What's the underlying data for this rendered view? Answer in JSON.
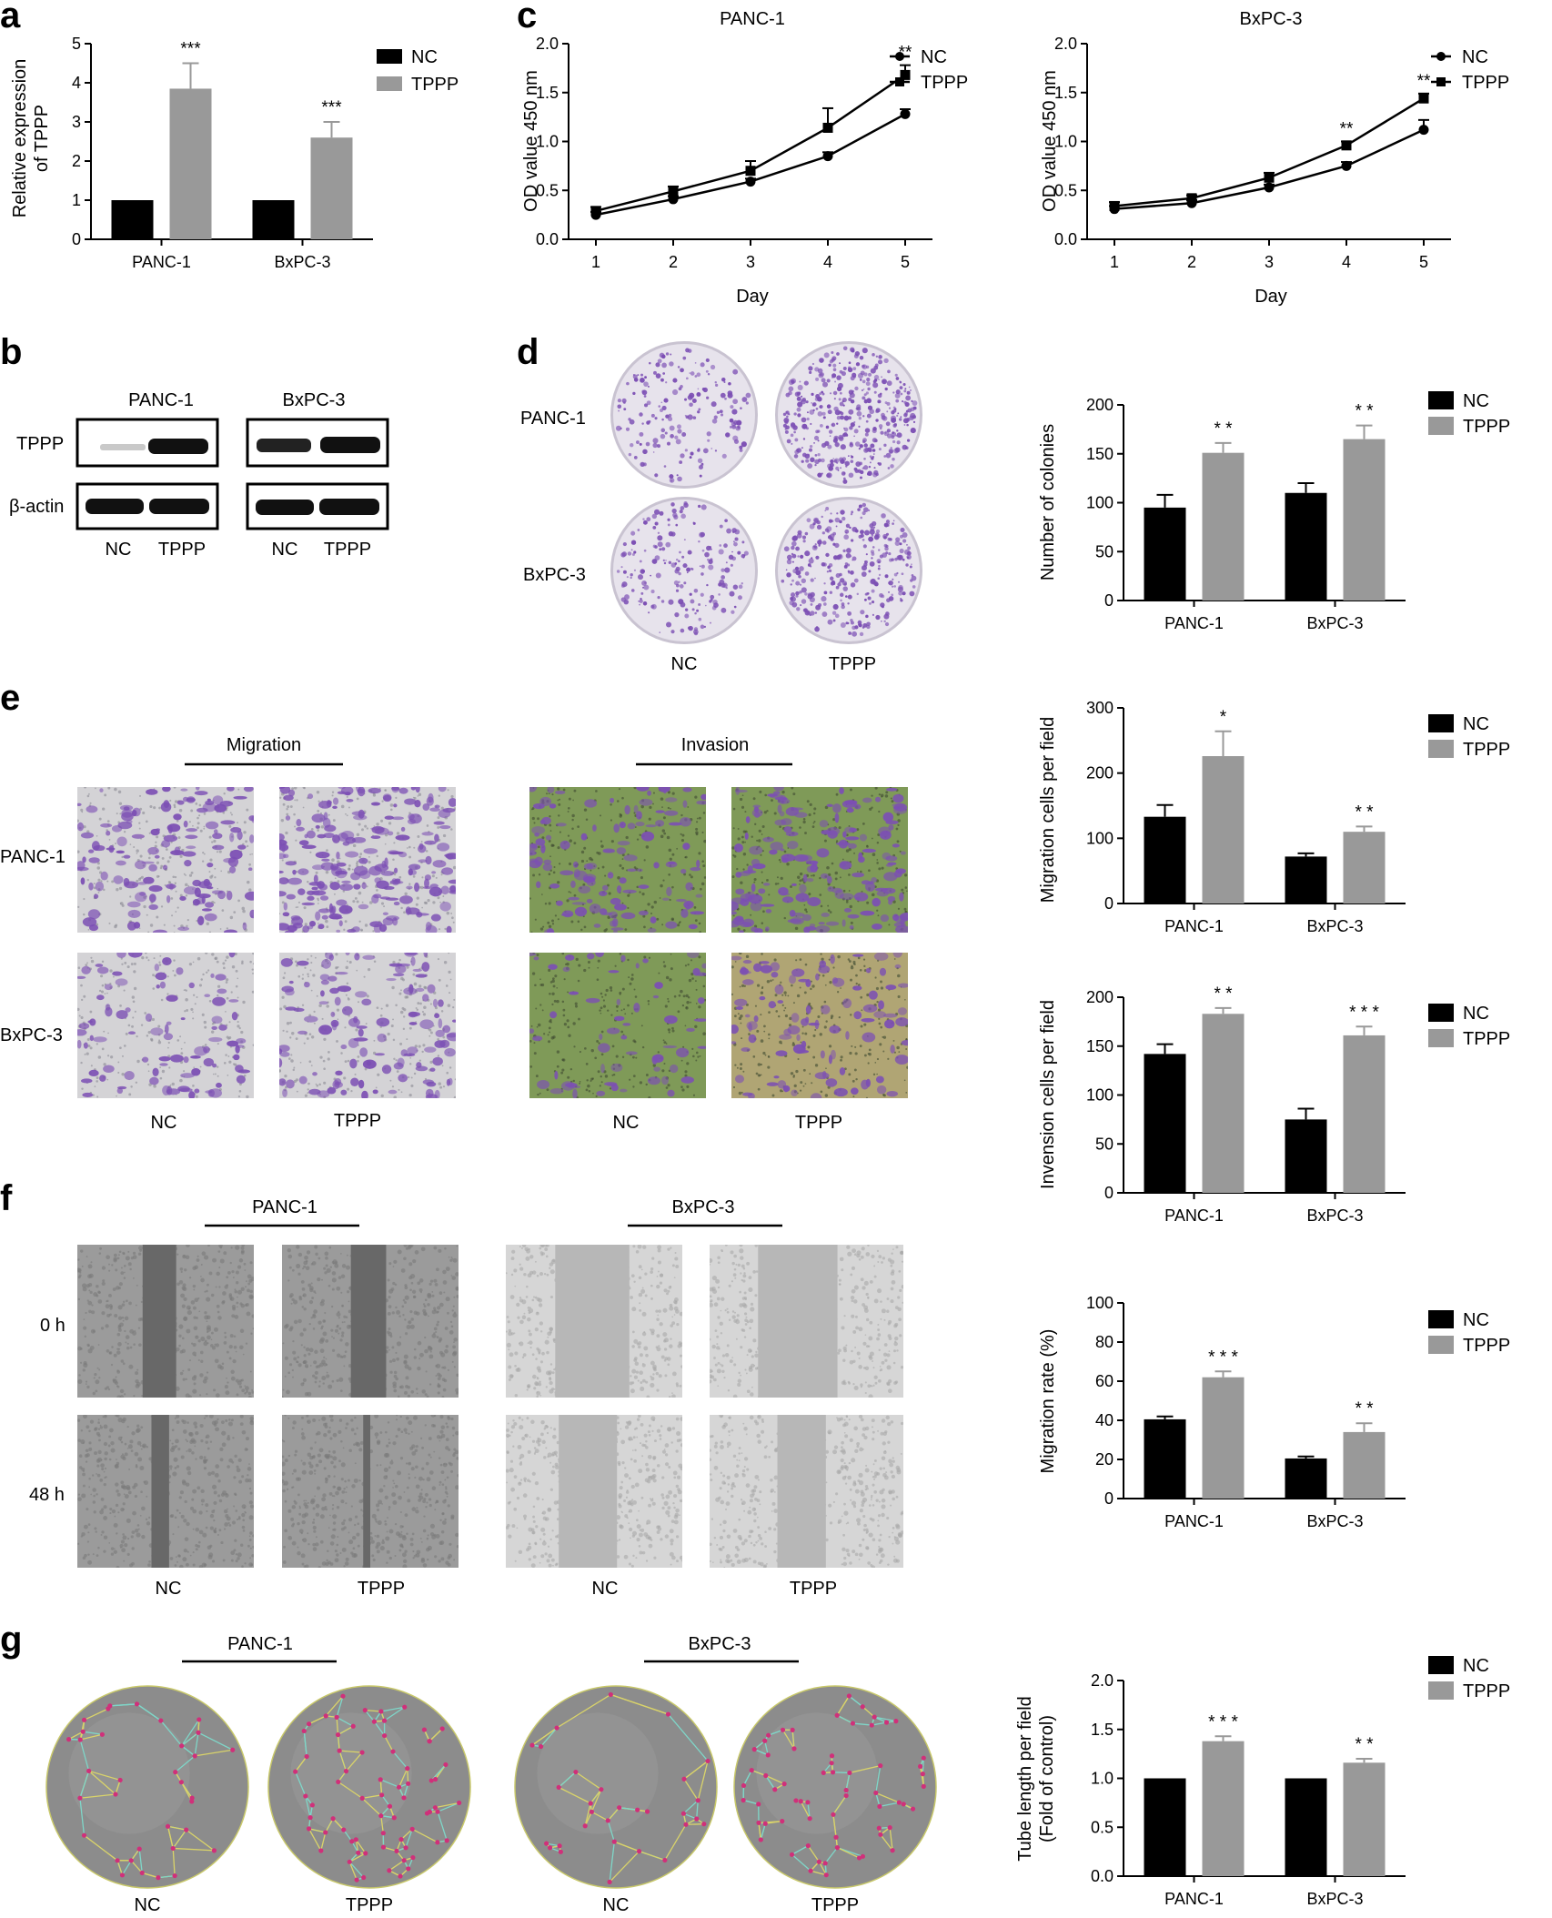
{
  "panel_labels": {
    "a": "a",
    "b": "b",
    "c": "c",
    "d": "d",
    "e": "e",
    "f": "f",
    "g": "g"
  },
  "colors": {
    "nc": "#000000",
    "tppp": "#999999",
    "axis": "#000000",
    "stain": "#7c4fb4",
    "invasion_bg": "#7f9a58"
  },
  "panel_b": {
    "cell_lines": [
      "PANC-1",
      "BxPC-3"
    ],
    "rows": [
      "TPPP",
      "β-actin"
    ],
    "lanes": [
      "NC",
      "TPPP",
      "NC",
      "TPPP"
    ]
  },
  "panel_d": {
    "rows": [
      "PANC-1",
      "BxPC-3"
    ],
    "cols": [
      "NC",
      "TPPP"
    ]
  },
  "panel_e": {
    "groups": [
      "Migration",
      "Invasion"
    ],
    "rows": [
      "PANC-1",
      "BxPC-3"
    ],
    "cols": [
      "NC",
      "TPPP",
      "NC",
      "TPPP"
    ]
  },
  "panel_f": {
    "groups": [
      "PANC-1",
      "BxPC-3"
    ],
    "rows": [
      "0 h",
      "48 h"
    ],
    "cols": [
      "NC",
      "TPPP",
      "NC",
      "TPPP"
    ]
  },
  "panel_g": {
    "groups": [
      "PANC-1",
      "BxPC-3"
    ],
    "cols": [
      "NC",
      "TPPP",
      "NC",
      "TPPP"
    ]
  },
  "chart_data": [
    {
      "id": "a",
      "type": "bar",
      "categories": [
        "PANC-1",
        "BxPC-3"
      ],
      "ylabel": [
        "Relative expression",
        "of TPPP"
      ],
      "ylim": [
        0,
        5
      ],
      "yticks": [
        0,
        1,
        2,
        3,
        4,
        5
      ],
      "series": [
        {
          "name": "NC",
          "values": [
            1,
            1
          ],
          "errors": [
            0,
            0
          ]
        },
        {
          "name": "TPPP",
          "values": [
            3.85,
            2.6
          ],
          "errors": [
            0.65,
            0.4
          ]
        }
      ],
      "significance": [
        "***",
        "***"
      ],
      "legend": [
        "NC",
        "TPPP"
      ]
    },
    {
      "id": "c1",
      "type": "line",
      "title": "PANC-1",
      "xlabel": "Day",
      "ylabel": "OD value 450 nm",
      "x": [
        1,
        2,
        3,
        4,
        5
      ],
      "xlim": [
        1,
        5
      ],
      "ylim": [
        0,
        2
      ],
      "yticks": [
        "0.0",
        "0.5",
        "1.0",
        "1.5",
        "2.0"
      ],
      "series": [
        {
          "name": "NC",
          "marker": "circle",
          "values": [
            0.25,
            0.41,
            0.59,
            0.85,
            1.28
          ],
          "errors": [
            0.03,
            0.03,
            0.03,
            0.04,
            0.05
          ]
        },
        {
          "name": "TPPP",
          "marker": "square",
          "values": [
            0.29,
            0.49,
            0.7,
            1.14,
            1.68
          ],
          "errors": [
            0.04,
            0.05,
            0.1,
            0.2,
            0.1
          ]
        }
      ],
      "significance": [
        "",
        "",
        "",
        "",
        "**"
      ],
      "legend": [
        "NC",
        "TPPP"
      ]
    },
    {
      "id": "c2",
      "type": "line",
      "title": "BxPC-3",
      "xlabel": "Day",
      "ylabel": "OD value 450 nm",
      "x": [
        1,
        2,
        3,
        4,
        5
      ],
      "xlim": [
        1,
        5
      ],
      "ylim": [
        0,
        2
      ],
      "yticks": [
        "0.0",
        "0.5",
        "1.0",
        "1.5",
        "2.0"
      ],
      "series": [
        {
          "name": "NC",
          "marker": "circle",
          "values": [
            0.31,
            0.37,
            0.53,
            0.75,
            1.12
          ],
          "errors": [
            0.03,
            0.03,
            0.03,
            0.04,
            0.1
          ]
        },
        {
          "name": "TPPP",
          "marker": "square",
          "values": [
            0.34,
            0.42,
            0.63,
            0.96,
            1.44
          ],
          "errors": [
            0.04,
            0.03,
            0.05,
            0.04,
            0.05
          ]
        }
      ],
      "significance": [
        "",
        "",
        "",
        "**",
        "**"
      ],
      "legend": [
        "NC",
        "TPPP"
      ]
    },
    {
      "id": "d",
      "type": "bar",
      "categories": [
        "PANC-1",
        "BxPC-3"
      ],
      "ylabel": [
        "Number of colonies"
      ],
      "ylim": [
        0,
        200
      ],
      "yticks": [
        0,
        50,
        100,
        150,
        200
      ],
      "series": [
        {
          "name": "NC",
          "values": [
            95,
            110
          ],
          "errors": [
            13,
            10
          ]
        },
        {
          "name": "TPPP",
          "values": [
            151,
            165
          ],
          "errors": [
            10,
            14
          ]
        }
      ],
      "significance": [
        "* *",
        "* *"
      ],
      "legend": [
        "NC",
        "TPPP"
      ]
    },
    {
      "id": "e1",
      "type": "bar",
      "categories": [
        "PANC-1",
        "BxPC-3"
      ],
      "ylabel": [
        "Migration cells per field"
      ],
      "ylim": [
        0,
        300
      ],
      "yticks": [
        0,
        100,
        200,
        300
      ],
      "series": [
        {
          "name": "NC",
          "values": [
            133,
            72
          ],
          "errors": [
            18,
            5
          ]
        },
        {
          "name": "TPPP",
          "values": [
            226,
            110
          ],
          "errors": [
            38,
            8
          ]
        }
      ],
      "significance": [
        "*",
        "* *"
      ],
      "legend": [
        "NC",
        "TPPP"
      ]
    },
    {
      "id": "e2",
      "type": "bar",
      "categories": [
        "PANC-1",
        "BxPC-3"
      ],
      "ylabel": [
        "Invension cells per field"
      ],
      "ylim": [
        0,
        200
      ],
      "yticks": [
        0,
        50,
        100,
        150,
        200
      ],
      "series": [
        {
          "name": "NC",
          "values": [
            142,
            75
          ],
          "errors": [
            10,
            11
          ]
        },
        {
          "name": "TPPP",
          "values": [
            183,
            161
          ],
          "errors": [
            6,
            9
          ]
        }
      ],
      "significance": [
        "* *",
        "* * *"
      ],
      "legend": [
        "NC",
        "TPPP"
      ]
    },
    {
      "id": "f",
      "type": "bar",
      "categories": [
        "PANC-1",
        "BxPC-3"
      ],
      "ylabel": [
        "Migration rate (%)"
      ],
      "ylim": [
        0,
        100
      ],
      "yticks": [
        0,
        20,
        40,
        60,
        80,
        100
      ],
      "series": [
        {
          "name": "NC",
          "values": [
            40.5,
            20.5
          ],
          "errors": [
            1.5,
            1
          ]
        },
        {
          "name": "TPPP",
          "values": [
            62,
            34
          ],
          "errors": [
            3,
            4.5
          ]
        }
      ],
      "significance": [
        "* * *",
        "* *"
      ],
      "legend": [
        "NC",
        "TPPP"
      ]
    },
    {
      "id": "g",
      "type": "bar",
      "categories": [
        "PANC-1",
        "BxPC-3"
      ],
      "ylabel": [
        "Tube length per field",
        "(Fold of control)"
      ],
      "ylim": [
        0,
        2
      ],
      "yticks": [
        "0.0",
        "0.5",
        "1.0",
        "1.5",
        "2.0"
      ],
      "series": [
        {
          "name": "NC",
          "values": [
            1,
            1
          ],
          "errors": [
            0,
            0
          ]
        },
        {
          "name": "TPPP",
          "values": [
            1.38,
            1.16
          ],
          "errors": [
            0.05,
            0.04
          ]
        }
      ],
      "significance": [
        "* * *",
        "* *"
      ],
      "legend": [
        "NC",
        "TPPP"
      ]
    }
  ]
}
